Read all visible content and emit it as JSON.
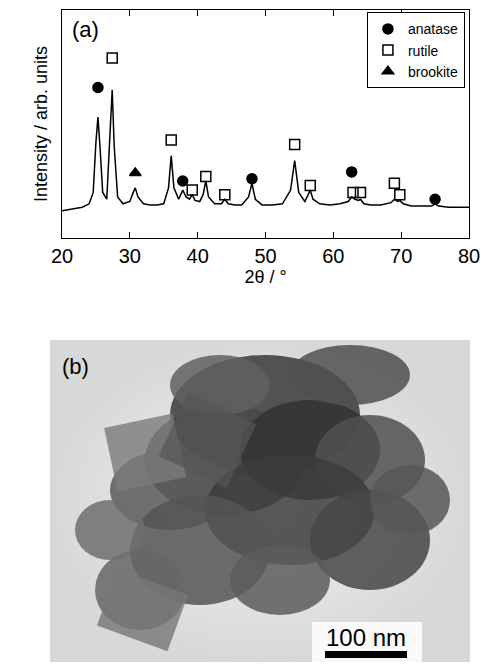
{
  "chart_data": {
    "type": "line",
    "panel": "(a)",
    "x_label": "2θ / °",
    "y_label": "Intensity / arb. units",
    "xlim": [
      20,
      80
    ],
    "xticks": [
      20,
      30,
      40,
      50,
      60,
      70,
      80
    ],
    "ylim": [
      0,
      100
    ],
    "yticks": [],
    "tick_labels": "x",
    "grid": false,
    "legend": "upper right",
    "series": [
      {
        "type": "line",
        "color": "#000000",
        "x": [
          20,
          21,
          22,
          23,
          24,
          24.6,
          25.0,
          25.3,
          25.6,
          26.0,
          26.6,
          27.1,
          27.4,
          27.7,
          28.2,
          29,
          30,
          30.5,
          30.8,
          31.2,
          32,
          33,
          34,
          35,
          35.7,
          36.1,
          36.5,
          37.2,
          37.8,
          38.3,
          38.8,
          39.2,
          39.6,
          40.3,
          40.8,
          41.2,
          41.6,
          42.5,
          43.5,
          44.0,
          44.5,
          45.5,
          46.5,
          47.5,
          48.0,
          48.5,
          49.5,
          51,
          52.5,
          53.7,
          54.3,
          54.9,
          55.8,
          56.3,
          56.6,
          57.0,
          58,
          59.5,
          61,
          62.2,
          62.7,
          63.2,
          63.7,
          64.0,
          64.5,
          65.5,
          67,
          68.5,
          69.0,
          69.5,
          69.8,
          70.3,
          71.5,
          73,
          74.5,
          75.0,
          75.5,
          77,
          78.5,
          80
        ],
        "values": [
          12,
          12.5,
          13,
          13.5,
          15,
          20,
          42,
          53,
          40,
          20,
          17,
          45,
          65,
          40,
          18,
          15,
          16,
          20,
          22,
          18,
          15,
          14.5,
          14.5,
          15,
          22,
          36,
          22,
          17,
          21,
          18,
          17,
          19,
          16.5,
          16,
          19,
          25,
          18,
          15,
          15,
          17,
          15,
          14.5,
          14.5,
          18,
          24,
          17,
          14.5,
          14.5,
          15,
          21,
          34,
          20,
          16,
          19,
          21,
          17,
          15,
          14.5,
          15,
          16,
          18,
          17,
          16.5,
          17,
          15,
          14.5,
          14.5,
          15.5,
          17,
          16,
          16.5,
          15,
          14,
          14,
          14,
          15,
          14,
          13.5,
          13.5,
          13.5
        ]
      },
      {
        "name": "anatase",
        "type": "scatter",
        "marker": "circle",
        "color": "#000000",
        "x": [
          25.3,
          37.8,
          48.0,
          62.7,
          75.0
        ],
        "values": [
          66,
          25,
          26,
          29,
          17
        ]
      },
      {
        "name": "rutile",
        "type": "scatter",
        "marker": "square-open",
        "color": "#000000",
        "x": [
          27.4,
          36.1,
          39.2,
          41.2,
          44.0,
          54.3,
          56.6,
          62.9,
          64.0,
          69.0,
          69.8
        ],
        "values": [
          79,
          43,
          21,
          27,
          19,
          41,
          23,
          20,
          20,
          24,
          19
        ]
      },
      {
        "name": "brookite",
        "type": "scatter",
        "marker": "triangle-up",
        "color": "#000000",
        "x": [
          30.8
        ],
        "values": [
          28.5
        ]
      }
    ]
  },
  "image": {
    "panel": "(b)",
    "scale_bar": "100 nm"
  }
}
